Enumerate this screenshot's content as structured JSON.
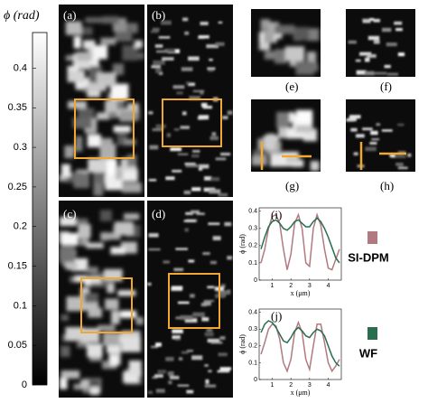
{
  "colorbar": {
    "label": "ϕ (rad)",
    "lim": [
      0,
      0.445
    ],
    "ticks": [
      0,
      0.05,
      0.1,
      0.15,
      0.2,
      0.25,
      0.3,
      0.35,
      0.4
    ]
  },
  "panels": [
    "(a)",
    "(b)",
    "(c)",
    "(d)",
    "(e)",
    "(f)",
    "(g)",
    "(h)"
  ],
  "chart_data": [
    {
      "type": "line",
      "label": "(i)",
      "xlabel": "x (μm)",
      "ylabel": "ϕ (rad)",
      "xlim": [
        0.3,
        4.7
      ],
      "xticks": [
        1,
        2,
        3,
        4
      ],
      "ylim": [
        0,
        0.42
      ],
      "yticks": [
        0,
        0.1,
        0.2,
        0.3,
        0.4
      ],
      "x": [
        0.4,
        0.6,
        0.8,
        1.0,
        1.2,
        1.4,
        1.6,
        1.8,
        2.0,
        2.2,
        2.4,
        2.6,
        2.8,
        3.0,
        3.2,
        3.4,
        3.6,
        3.8,
        4.0,
        4.2,
        4.4,
        4.6
      ],
      "series": [
        {
          "name": "SI-DPM",
          "color": "#b07a80",
          "values": [
            0.1,
            0.18,
            0.3,
            0.37,
            0.38,
            0.33,
            0.18,
            0.06,
            0.15,
            0.33,
            0.38,
            0.3,
            0.1,
            0.08,
            0.3,
            0.38,
            0.32,
            0.18,
            0.07,
            0.06,
            0.12,
            0.18
          ]
        },
        {
          "name": "WF",
          "color": "#2a6e4e",
          "values": [
            0.18,
            0.25,
            0.31,
            0.34,
            0.35,
            0.33,
            0.3,
            0.29,
            0.31,
            0.34,
            0.35,
            0.33,
            0.31,
            0.31,
            0.34,
            0.36,
            0.34,
            0.3,
            0.25,
            0.19,
            0.13,
            0.1
          ]
        }
      ]
    },
    {
      "type": "line",
      "label": "(j)",
      "xlabel": "x (μm)",
      "ylabel": "ϕ (rad)",
      "xlim": [
        0.3,
        4.7
      ],
      "xticks": [
        1,
        2,
        3,
        4
      ],
      "ylim": [
        0,
        0.42
      ],
      "yticks": [
        0,
        0.1,
        0.2,
        0.3,
        0.4
      ],
      "x": [
        0.4,
        0.6,
        0.8,
        1.0,
        1.2,
        1.4,
        1.6,
        1.8,
        2.0,
        2.2,
        2.4,
        2.6,
        2.8,
        3.0,
        3.2,
        3.4,
        3.6,
        3.8,
        4.0,
        4.2,
        4.4,
        4.6
      ],
      "series": [
        {
          "color": "#b07a80",
          "values": [
            0.15,
            0.22,
            0.3,
            0.33,
            0.32,
            0.24,
            0.1,
            0.05,
            0.12,
            0.28,
            0.34,
            0.28,
            0.12,
            0.06,
            0.2,
            0.33,
            0.33,
            0.22,
            0.1,
            0.05,
            0.08,
            0.12
          ]
        },
        {
          "color": "#2a6e4e",
          "values": [
            0.28,
            0.33,
            0.35,
            0.34,
            0.31,
            0.27,
            0.23,
            0.22,
            0.25,
            0.29,
            0.31,
            0.29,
            0.26,
            0.25,
            0.28,
            0.3,
            0.29,
            0.26,
            0.2,
            0.14,
            0.1,
            0.08
          ]
        }
      ]
    }
  ]
}
